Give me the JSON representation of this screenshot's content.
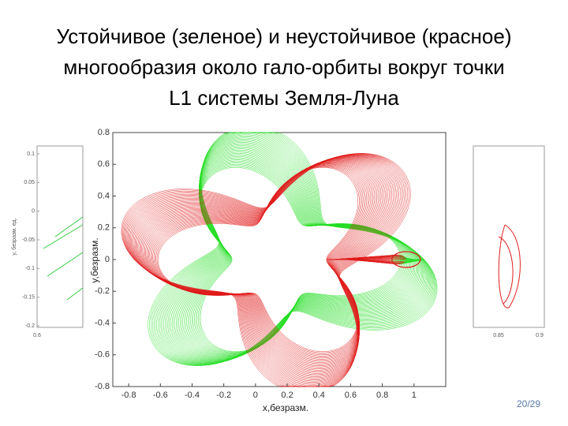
{
  "slide": {
    "title": [
      "Устойчивое (зеленое) и неустойчивое (красное)",
      "многообразия около гало-орбиты вокруг точки",
      "L1 системы Земля-Луна"
    ],
    "page": "20/29"
  },
  "main_plot": {
    "xlabel": "x,безразм.",
    "ylabel": "y,безразм.",
    "xlim": [
      -0.9,
      1.2
    ],
    "ylim": [
      -0.8,
      0.8
    ],
    "xticks": [
      -0.8,
      -0.6,
      -0.4,
      -0.2,
      0,
      0.2,
      0.4,
      0.6,
      0.8,
      1
    ],
    "yticks": [
      -0.8,
      -0.6,
      -0.4,
      -0.2,
      0,
      0.2,
      0.4,
      0.6,
      0.8
    ]
  },
  "left_plot": {
    "ylabel": "y, безразм. ед.",
    "yticks": [
      -0.2,
      -0.15,
      -0.1,
      -0.05,
      0,
      0.05,
      0.1
    ],
    "xticks": [
      0.6
    ]
  },
  "right_plot": {
    "xticks": [
      0.85,
      0.9
    ]
  }
}
